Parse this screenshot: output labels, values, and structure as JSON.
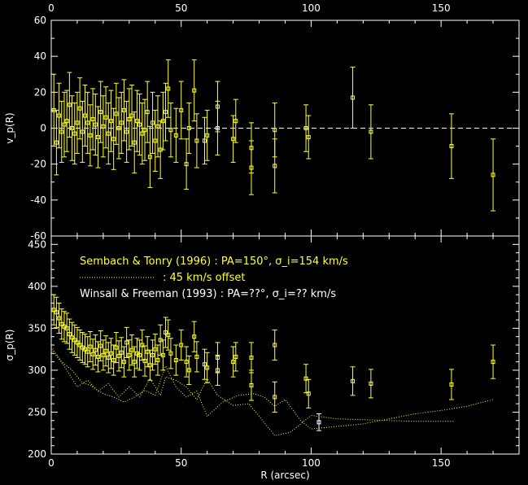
{
  "chart_data": [
    {
      "type": "scatter",
      "panel": "top",
      "ylabel": "v_p(R)",
      "xlim": [
        0,
        180
      ],
      "ylim": [
        -60,
        60
      ],
      "xticks": [
        0,
        50,
        100,
        150
      ],
      "yticks": [
        -60,
        -40,
        -20,
        0,
        20,
        40,
        60
      ],
      "zero_line": "dashed white at v=0",
      "series": [
        {
          "points": [
            [
              1,
              10,
              20
            ],
            [
              2,
              -8,
              18
            ],
            [
              3,
              7,
              18
            ],
            [
              4,
              -2,
              17
            ],
            [
              5,
              2,
              18
            ],
            [
              6,
              4,
              17
            ],
            [
              7,
              13,
              18
            ],
            [
              8,
              0,
              18
            ],
            [
              9,
              -3,
              17
            ],
            [
              10,
              3,
              17
            ],
            [
              11,
              11,
              17
            ],
            [
              12,
              -2,
              17
            ],
            [
              13,
              7,
              17
            ],
            [
              14,
              3,
              17
            ],
            [
              15,
              -4,
              17
            ],
            [
              16,
              5,
              17
            ],
            [
              17,
              2,
              17
            ],
            [
              18,
              -5,
              17
            ],
            [
              19,
              9,
              17
            ],
            [
              20,
              1,
              17
            ],
            [
              21,
              6,
              17
            ],
            [
              22,
              -3,
              17
            ],
            [
              23,
              4,
              17
            ],
            [
              24,
              -6,
              17
            ],
            [
              25,
              8,
              17
            ],
            [
              26,
              0,
              17
            ],
            [
              27,
              3,
              17
            ],
            [
              28,
              10,
              17
            ],
            [
              29,
              -2,
              17
            ],
            [
              30,
              5,
              17
            ],
            [
              31,
              7,
              17
            ],
            [
              32,
              -8,
              17
            ],
            [
              33,
              4,
              17
            ],
            [
              34,
              2,
              17
            ],
            [
              35,
              -3,
              17
            ],
            [
              36,
              -1,
              17
            ],
            [
              37,
              9,
              17
            ],
            [
              38,
              -16,
              17
            ],
            [
              39,
              3,
              17
            ],
            [
              40,
              -7,
              17
            ],
            [
              41,
              1,
              17
            ],
            [
              42,
              -12,
              16
            ],
            [
              43,
              4,
              16
            ],
            [
              44,
              9,
              16
            ],
            [
              45,
              22,
              16
            ],
            [
              46,
              -1,
              15
            ],
            [
              48,
              -4,
              15
            ],
            [
              50,
              10,
              16
            ],
            [
              52,
              -20,
              14
            ],
            [
              53,
              0,
              14
            ],
            [
              55,
              21,
              17
            ],
            [
              56,
              -7,
              15
            ],
            [
              59,
              -7,
              13
            ],
            [
              60,
              -4,
              14
            ],
            [
              64,
              12,
              14
            ],
            [
              64,
              0,
              15
            ],
            [
              70,
              -6,
              13
            ],
            [
              71,
              4,
              12
            ],
            [
              77,
              -22,
              15
            ],
            [
              77,
              -11,
              14
            ],
            [
              86,
              -21,
              15
            ],
            [
              86,
              -1,
              15
            ],
            [
              98,
              0,
              13
            ],
            [
              99,
              -5,
              12
            ],
            [
              116,
              17,
              17
            ],
            [
              123,
              -2,
              15
            ],
            [
              154,
              -10,
              18
            ],
            [
              170,
              -26,
              20
            ]
          ]
        }
      ]
    },
    {
      "type": "scatter",
      "panel": "bottom",
      "xlabel": "R (arcsec)",
      "ylabel": "σ_p(R)",
      "xlim": [
        0,
        180
      ],
      "ylim": [
        200,
        460
      ],
      "xticks": [
        0,
        50,
        100,
        150
      ],
      "yticks": [
        200,
        250,
        300,
        350,
        400,
        450
      ],
      "legend": [
        {
          "label": "Sembach & Tonry (1996) : PA=150°, σ_i=154 km/s",
          "color": "#ffff33"
        },
        {
          "label": ": 45 km/s offset",
          "color": "#ffff33",
          "line": "dotted"
        },
        {
          "label": "Winsall & Freeman (1993) : PA=??°, σ_i=?? km/s",
          "color": "#ffffff"
        }
      ],
      "series": [
        {
          "name": "Sembach & Tonry (1996) : PA=150°, σ_i=154 km/s",
          "color": "#ffff33",
          "points": [
            [
              1,
              372,
              18
            ],
            [
              2,
              369,
              18
            ],
            [
              3,
              362,
              18
            ],
            [
              4,
              355,
              18
            ],
            [
              5,
              352,
              18
            ],
            [
              6,
              350,
              18
            ],
            [
              7,
              343,
              18
            ],
            [
              8,
              339,
              18
            ],
            [
              9,
              336,
              18
            ],
            [
              10,
              333,
              18
            ],
            [
              11,
              330,
              18
            ],
            [
              12,
              327,
              18
            ],
            [
              13,
              325,
              18
            ],
            [
              14,
              322,
              18
            ],
            [
              15,
              328,
              18
            ],
            [
              16,
              319,
              18
            ],
            [
              17,
              324,
              18
            ],
            [
              18,
              316,
              18
            ],
            [
              19,
              329,
              18
            ],
            [
              20,
              318,
              18
            ],
            [
              21,
              323,
              18
            ],
            [
              22,
              315,
              18
            ],
            [
              23,
              320,
              18
            ],
            [
              24,
              312,
              18
            ],
            [
              25,
              327,
              18
            ],
            [
              26,
              317,
              18
            ],
            [
              27,
              321,
              18
            ],
            [
              28,
              310,
              18
            ],
            [
              29,
              333,
              18
            ],
            [
              30,
              318,
              18
            ],
            [
              31,
              324,
              18
            ],
            [
              32,
              310,
              18
            ],
            [
              33,
              320,
              18
            ],
            [
              34,
              318,
              18
            ],
            [
              35,
              330,
              18
            ],
            [
              36,
              311,
              18
            ],
            [
              37,
              322,
              18
            ],
            [
              38,
              306,
              18
            ],
            [
              39,
              318,
              18
            ],
            [
              40,
              325,
              18
            ],
            [
              41,
              312,
              18
            ],
            [
              42,
              336,
              18
            ],
            [
              43,
              318,
              18
            ],
            [
              44,
              345,
              18
            ],
            [
              45,
              342,
              18
            ],
            [
              46,
              320,
              18
            ],
            [
              48,
              312,
              18
            ],
            [
              50,
              330,
              18
            ],
            [
              52,
              310,
              18
            ],
            [
              53,
              300,
              17
            ],
            [
              55,
              340,
              18
            ],
            [
              56,
              316,
              18
            ],
            [
              59,
              307,
              18
            ],
            [
              60,
              303,
              18
            ],
            [
              64,
              315,
              18
            ],
            [
              64,
              300,
              18
            ],
            [
              70,
              310,
              18
            ],
            [
              71,
              316,
              17
            ],
            [
              77,
              282,
              18
            ],
            [
              77,
              315,
              18
            ],
            [
              86,
              268,
              18
            ],
            [
              86,
              330,
              18
            ],
            [
              98,
              290,
              17
            ],
            [
              99,
              272,
              17
            ],
            [
              116,
              287,
              17
            ],
            [
              123,
              284,
              17
            ],
            [
              154,
              283,
              18
            ],
            [
              170,
              310,
              20
            ]
          ]
        },
        {
          "name": "Winsall & Freeman (1993) : PA=??°, σ_i=?? km/s",
          "color": "#ffffff",
          "points": [
            [
              103,
              238,
              10
            ]
          ]
        },
        {
          "name": ": 45 km/s offset",
          "color": "#ffff33",
          "line": "dotted",
          "points_xy": [
            [
              0,
              328
            ],
            [
              4,
              310
            ],
            [
              8,
              300
            ],
            [
              12,
              285
            ],
            [
              15,
              282
            ],
            [
              20,
              272
            ],
            [
              24,
              268
            ],
            [
              28,
              262
            ],
            [
              32,
              268
            ],
            [
              36,
              276
            ],
            [
              40,
              270
            ],
            [
              44,
              305
            ],
            [
              48,
              280
            ],
            [
              52,
              268
            ],
            [
              56,
              275
            ],
            [
              60,
              245
            ],
            [
              66,
              262
            ],
            [
              72,
              270
            ],
            [
              78,
              272
            ],
            [
              82,
              268
            ],
            [
              86,
              257
            ],
            [
              90,
              265
            ],
            [
              96,
              240
            ],
            [
              100,
              230
            ],
            [
              110,
              233
            ],
            [
              120,
              236
            ],
            [
              130,
              242
            ],
            [
              140,
              248
            ],
            [
              150,
              252
            ],
            [
              160,
              257
            ],
            [
              170,
              265
            ]
          ]
        },
        {
          "name": ": 45 km/s offset",
          "color": "#ffff33",
          "line": "dotted",
          "points_xy": [
            [
              0,
              325
            ],
            [
              5,
              305
            ],
            [
              10,
              280
            ],
            [
              14,
              288
            ],
            [
              18,
              275
            ],
            [
              22,
              284
            ],
            [
              26,
              268
            ],
            [
              30,
              280
            ],
            [
              34,
              268
            ],
            [
              38,
              290
            ],
            [
              42,
              270
            ],
            [
              44,
              292
            ],
            [
              48,
              288
            ],
            [
              52,
              280
            ],
            [
              56,
              265
            ],
            [
              60,
              290
            ],
            [
              64,
              270
            ],
            [
              70,
              258
            ],
            [
              76,
              260
            ],
            [
              80,
              245
            ],
            [
              86,
              222
            ],
            [
              92,
              226
            ],
            [
              100,
              246
            ],
            [
              110,
              242
            ],
            [
              120,
              241
            ],
            [
              140,
              239
            ],
            [
              155,
              239
            ]
          ]
        }
      ]
    }
  ]
}
